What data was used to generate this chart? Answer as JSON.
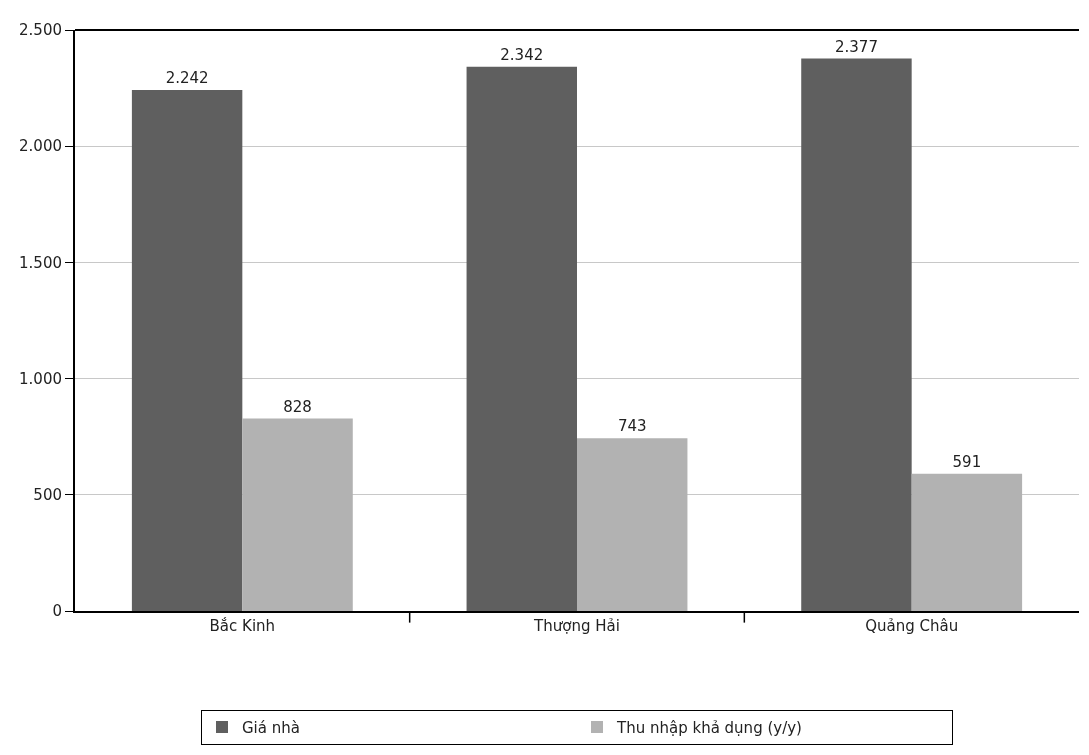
{
  "chart_data": {
    "type": "bar",
    "categories": [
      "Bắc Kinh",
      "Thượng Hải",
      "Quảng Châu"
    ],
    "series": [
      {
        "name": "Giá nhà",
        "color": "#5f5f5f",
        "values": [
          2242,
          2342,
          2377
        ],
        "value_labels": [
          "2.242",
          "2.342",
          "2.377"
        ]
      },
      {
        "name": "Thu nhập khả dụng (y/y)",
        "color": "#b2b2b2",
        "values": [
          828,
          743,
          591
        ],
        "value_labels": [
          "828",
          "743",
          "591"
        ]
      }
    ],
    "ylim": [
      0,
      2500
    ],
    "yticks": [
      {
        "value": 0,
        "label": "0"
      },
      {
        "value": 500,
        "label": "500"
      },
      {
        "value": 1000,
        "label": "1.000"
      },
      {
        "value": 1500,
        "label": "1.500"
      },
      {
        "value": 2000,
        "label": "2.000"
      },
      {
        "value": 2500,
        "label": "2.500"
      }
    ],
    "grid": "y",
    "legend": "bottom"
  }
}
